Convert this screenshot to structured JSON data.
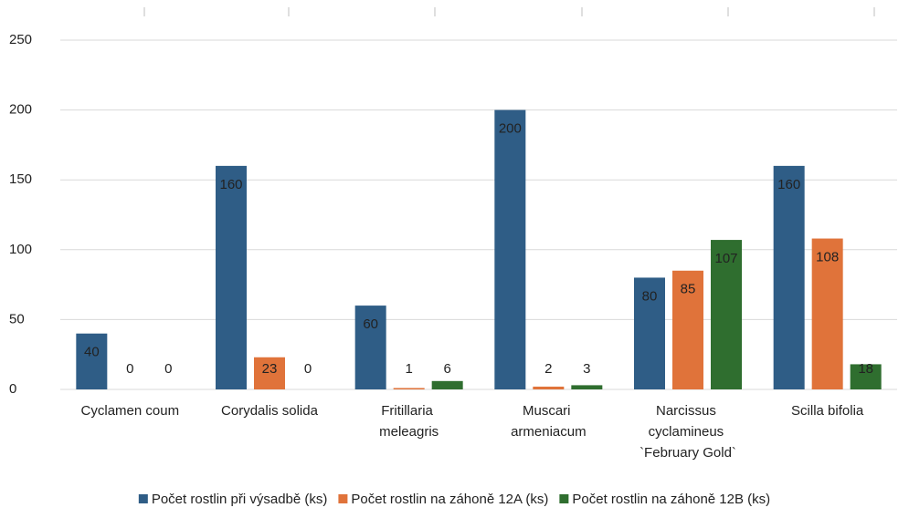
{
  "chart_data": {
    "type": "bar",
    "categories": [
      "Cyclamen coum",
      "Corydalis solida",
      "Fritillaria meleagris",
      "Muscari armeniacum",
      "Narcissus cyclamineus `February Gold`",
      "Scilla bifolia"
    ],
    "series": [
      {
        "name": "Počet rostlin při výsadbě (ks)",
        "color": "#2f5d86",
        "values": [
          40,
          160,
          60,
          200,
          80,
          160
        ]
      },
      {
        "name": "Počet rostlin na záhoně 12A (ks)",
        "color": "#e0733a",
        "values": [
          0,
          23,
          1,
          2,
          85,
          108
        ]
      },
      {
        "name": "Počet rostlin na záhoně 12B (ks)",
        "color": "#2f6e2f",
        "values": [
          0,
          0,
          6,
          3,
          107,
          18
        ]
      }
    ],
    "ylim": [
      0,
      250
    ],
    "yticks": [
      0,
      50,
      100,
      150,
      200,
      250
    ],
    "grid": true,
    "legend": "bottom"
  }
}
